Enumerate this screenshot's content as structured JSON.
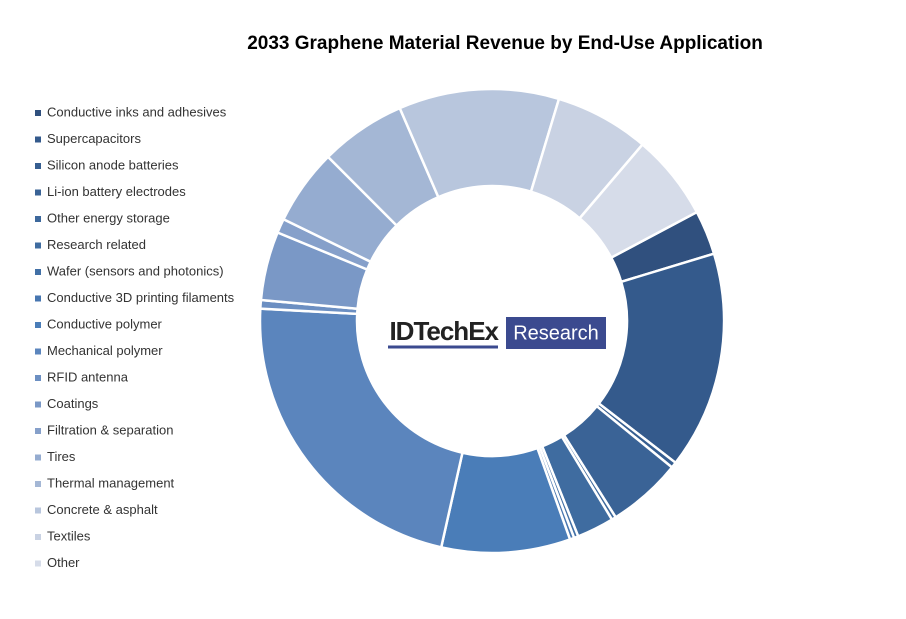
{
  "chart_data": {
    "type": "donut",
    "title": "2033 Graphene Material Revenue by End-Use Application",
    "categories": [
      "Conductive inks and adhesives",
      "Supercapacitors",
      "Silicon anode batteries",
      "Li-ion battery electrodes",
      "Other energy storage",
      "Research related",
      "Wafer (sensors and photonics)",
      "Conductive 3D printing filaments",
      "Conductive polymer",
      "Mechanical polymer",
      "RFID antenna",
      "Coatings",
      "Filtration & separation",
      "Tires",
      "Thermal management",
      "Concrete & asphalt",
      "Textiles",
      "Other"
    ],
    "values": [
      3.1,
      15.2,
      0.4,
      5.2,
      0.3,
      2.6,
      0.3,
      0.3,
      9,
      22.4,
      0.6,
      4.8,
      1,
      5.3,
      6,
      11.2,
      6.6,
      6
    ],
    "colors": [
      "#30507e",
      "#345a8c",
      "#365e90",
      "#3a6396",
      "#3d689c",
      "#3f6ca0",
      "#4270a6",
      "#4776b0",
      "#4a7db8",
      "#5b85bd",
      "#6c8fc2",
      "#7a98c6",
      "#86a0ca",
      "#95acd0",
      "#a4b7d5",
      "#b8c6dd",
      "#c9d2e3",
      "#d6dce9"
    ],
    "legend": "left"
  },
  "logo": {
    "brand": "IDTechEx",
    "label": "Research"
  }
}
